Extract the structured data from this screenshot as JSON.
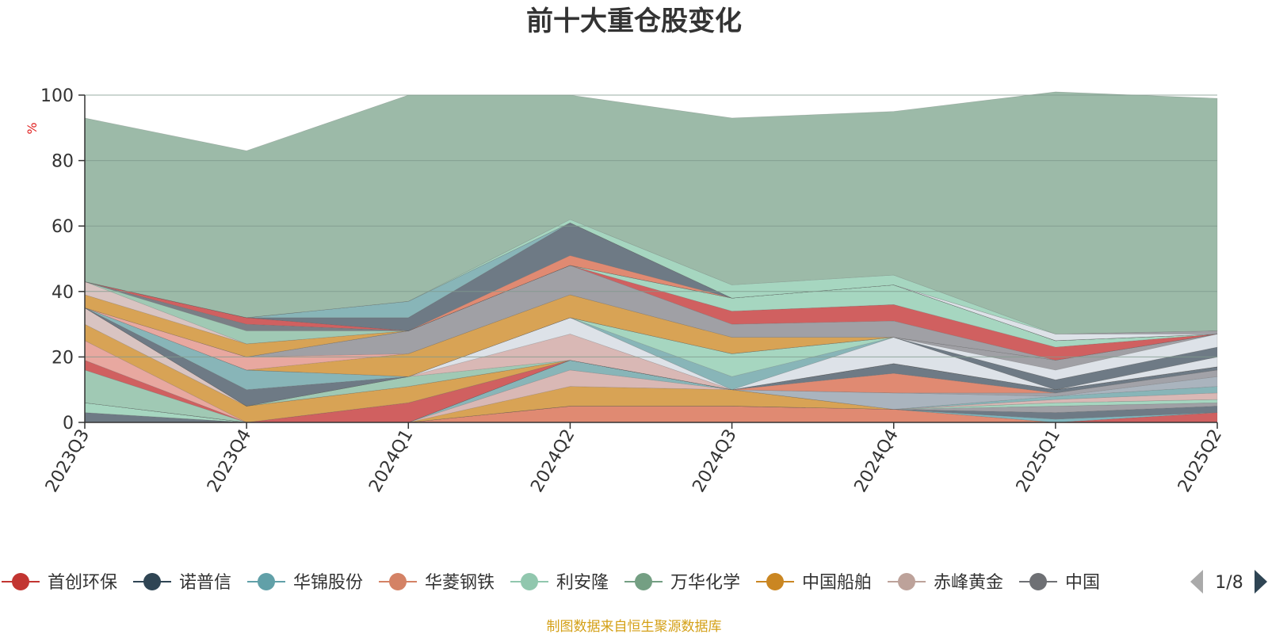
{
  "chart_data": {
    "type": "area",
    "stacked": true,
    "title": "前十大重仓股变化",
    "ylabel": "%",
    "xlabel": "",
    "ylim": [
      0,
      100
    ],
    "yticks": [
      0,
      20,
      40,
      60,
      80,
      100
    ],
    "grid": true,
    "categories": [
      "2023Q3",
      "2023Q4",
      "2024Q1",
      "2024Q2",
      "2024Q3",
      "2024Q4",
      "2025Q1",
      "2025Q2"
    ],
    "series": [
      {
        "name": "",
        "color": "#e08a72",
        "values": [
          0,
          0,
          0,
          5,
          5,
          4,
          0,
          0
        ]
      },
      {
        "name": "",
        "color": "#d06060",
        "values": [
          0,
          0,
          0,
          0,
          0,
          0,
          0,
          3
        ]
      },
      {
        "name": "",
        "color": "#7fb5bd",
        "values": [
          0,
          0,
          0,
          0,
          0,
          0,
          1,
          0
        ]
      },
      {
        "name": "",
        "color": "#6e7a85",
        "values": [
          3,
          0,
          0,
          0,
          0,
          0,
          2,
          2
        ]
      },
      {
        "name": "",
        "color": "#a0a0a5",
        "values": [
          0,
          0,
          0,
          0,
          0,
          0,
          2,
          1
        ]
      },
      {
        "name": "",
        "color": "#a6d6c0",
        "values": [
          3,
          0,
          0,
          0,
          0,
          0,
          1,
          1
        ]
      },
      {
        "name": "",
        "color": "#d8a355",
        "values": [
          0,
          0,
          0,
          6,
          5,
          0,
          0,
          0
        ]
      },
      {
        "name": "",
        "color": "#d9b8b5",
        "values": [
          0,
          0,
          0,
          5,
          0,
          0,
          1,
          2
        ]
      },
      {
        "name": "",
        "color": "#88b5b8",
        "values": [
          0,
          0,
          0,
          3,
          0,
          0,
          1,
          2
        ]
      },
      {
        "name": "",
        "color": "#aab4be",
        "values": [
          0,
          0,
          0,
          0,
          0,
          5,
          0,
          3
        ]
      },
      {
        "name": "",
        "color": "#a2a2a8",
        "values": [
          0,
          0,
          0,
          0,
          0,
          0,
          1,
          2
        ]
      },
      {
        "name": "",
        "color": "#e08a72",
        "values": [
          0,
          0,
          0,
          0,
          0,
          6,
          0,
          0
        ]
      },
      {
        "name": "",
        "color": "#6e7a85",
        "values": [
          0,
          0,
          0,
          0,
          0,
          3,
          1,
          1
        ]
      },
      {
        "name": "",
        "color": "#a0c9b4",
        "values": [
          10,
          0,
          0,
          0,
          0,
          0,
          0,
          0
        ]
      },
      {
        "name": "",
        "color": "#d06060",
        "values": [
          3,
          0,
          6,
          0,
          0,
          0,
          0,
          0
        ]
      },
      {
        "name": "",
        "color": "#e8a8a0",
        "values": [
          6,
          0,
          0,
          0,
          0,
          0,
          0,
          0
        ]
      },
      {
        "name": "",
        "color": "#d8a355",
        "values": [
          5,
          5,
          5,
          0,
          0,
          0,
          0,
          0
        ]
      },
      {
        "name": "",
        "color": "#d9c4c2",
        "values": [
          5,
          0,
          0,
          0,
          0,
          0,
          0,
          0
        ]
      },
      {
        "name": "",
        "color": "#88b5b8",
        "values": [
          0,
          0,
          0,
          0,
          0,
          0,
          0,
          0
        ]
      },
      {
        "name": "",
        "color": "#a0c9b4",
        "values": [
          0,
          0,
          3,
          0,
          0,
          0,
          0,
          0
        ]
      },
      {
        "name": "",
        "color": "#d9b8b5",
        "values": [
          0,
          0,
          0,
          8,
          0,
          0,
          0,
          0
        ]
      },
      {
        "name": "",
        "color": "#dde2e8",
        "values": [
          0,
          0,
          0,
          5,
          0,
          8,
          0,
          3
        ]
      },
      {
        "name": "",
        "color": "#88b5b8",
        "values": [
          0,
          0,
          0,
          0,
          4,
          0,
          0,
          0
        ]
      },
      {
        "name": "",
        "color": "#a6d6c0",
        "values": [
          0,
          0,
          0,
          0,
          7,
          0,
          0,
          0
        ]
      },
      {
        "name": "",
        "color": "#6e7a85",
        "values": [
          0,
          5,
          0,
          0,
          0,
          0,
          3,
          3
        ]
      },
      {
        "name": "",
        "color": "#88b5b8",
        "values": [
          0,
          6,
          0,
          0,
          0,
          0,
          0,
          0
        ]
      },
      {
        "name": "",
        "color": "#dde2e8",
        "values": [
          0,
          0,
          0,
          0,
          0,
          0,
          3,
          4
        ]
      },
      {
        "name": "",
        "color": "#a0a0a5",
        "values": [
          0,
          0,
          0,
          0,
          0,
          0,
          3,
          0
        ]
      },
      {
        "name": "",
        "color": "#d8a355",
        "values": [
          0,
          0,
          7,
          7,
          5,
          0,
          0,
          0
        ]
      },
      {
        "name": "",
        "color": "#e8a8a0",
        "values": [
          0,
          4,
          0,
          0,
          0,
          0,
          0,
          0
        ]
      },
      {
        "name": "",
        "color": "#a0a0a5",
        "values": [
          0,
          0,
          7,
          9,
          4,
          5,
          0,
          0
        ]
      },
      {
        "name": "",
        "color": "#d06060",
        "values": [
          0,
          0,
          0,
          0,
          4,
          5,
          4,
          0
        ]
      },
      {
        "name": "",
        "color": "#a6d6c0",
        "values": [
          0,
          0,
          0,
          0,
          4,
          6,
          2,
          0
        ]
      },
      {
        "name": "",
        "color": "#d8a355",
        "values": [
          4,
          4,
          0,
          0,
          0,
          0,
          0,
          0
        ]
      },
      {
        "name": "",
        "color": "#d9c4c2",
        "values": [
          4,
          0,
          0,
          0,
          0,
          0,
          0,
          0
        ]
      },
      {
        "name": "",
        "color": "#a0c9b4",
        "values": [
          0,
          4,
          0,
          0,
          0,
          0,
          0,
          0
        ]
      },
      {
        "name": "",
        "color": "#7a7f86",
        "values": [
          0,
          2,
          0,
          0,
          0,
          0,
          0,
          0
        ]
      },
      {
        "name": "",
        "color": "#d06060",
        "values": [
          0,
          2,
          0,
          0,
          0,
          0,
          0,
          0
        ]
      },
      {
        "name": "",
        "color": "#e08a72",
        "values": [
          0,
          0,
          0,
          3,
          0,
          0,
          0,
          0
        ]
      },
      {
        "name": "",
        "color": "#6e7a85",
        "values": [
          0,
          0,
          4,
          10,
          0,
          0,
          0,
          0
        ]
      },
      {
        "name": "",
        "color": "#88b5b8",
        "values": [
          0,
          0,
          5,
          0,
          0,
          0,
          0,
          0
        ]
      },
      {
        "name": "",
        "color": "#dde2e8",
        "values": [
          0,
          0,
          0,
          0,
          0,
          0,
          2,
          0
        ]
      },
      {
        "name": "",
        "color": "#a0a0a5",
        "values": [
          0,
          0,
          0,
          0,
          0,
          0,
          0,
          1
        ]
      },
      {
        "name": "",
        "color": "#a6d6c0",
        "values": [
          0,
          0,
          0,
          1,
          4,
          3,
          0,
          0
        ]
      },
      {
        "name": "",
        "color": "#9cbaa8",
        "values": [
          50,
          51,
          63,
          38,
          51,
          50,
          74,
          71
        ]
      }
    ],
    "legend": {
      "position": "bottom",
      "page": "1/8",
      "items": [
        {
          "name": "首创环保",
          "color": "#c23531"
        },
        {
          "name": "诺普信",
          "color": "#2f4554"
        },
        {
          "name": "华锦股份",
          "color": "#61a0a8"
        },
        {
          "name": "华菱钢铁",
          "color": "#d48265"
        },
        {
          "name": "利安隆",
          "color": "#91c7ae"
        },
        {
          "name": "万华化学",
          "color": "#749f83"
        },
        {
          "name": "中国船舶",
          "color": "#ca8622"
        },
        {
          "name": "赤峰黄金",
          "color": "#bda29a"
        },
        {
          "name": "中国",
          "color": "#6e7074"
        }
      ]
    },
    "source_note": "制图数据来自恒生聚源数据库"
  },
  "colors": {
    "axis": "#333333",
    "grid": "#7f9a8c",
    "ylabel": "#e02020",
    "source_note": "#d4a017",
    "pager_active": "#2f4554",
    "pager_inactive": "#aaaaaa"
  }
}
